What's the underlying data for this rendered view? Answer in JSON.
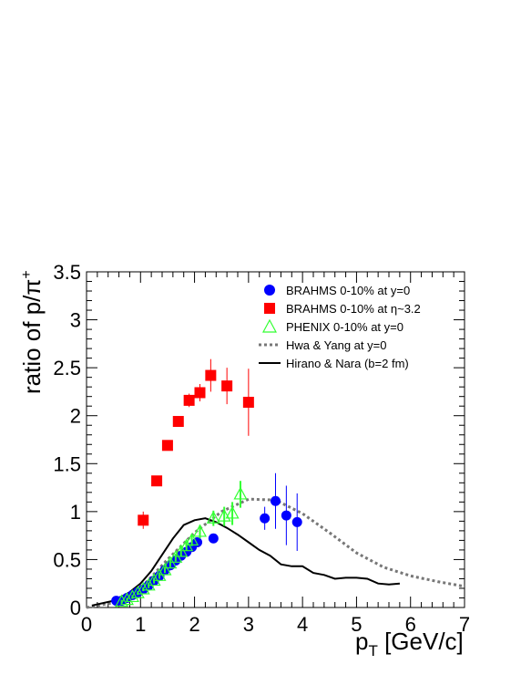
{
  "chart_data": {
    "type": "scatter",
    "xlabel": "p_T [GeV/c]",
    "ylabel": "ratio of p/π⁺",
    "xlim": [
      0,
      7
    ],
    "ylim": [
      0,
      3.5
    ],
    "x_ticks": [
      "0",
      "1",
      "2",
      "3",
      "4",
      "5",
      "6",
      "7"
    ],
    "y_ticks": [
      "0",
      "0.5",
      "1",
      "1.5",
      "2",
      "2.5",
      "3",
      "3.5"
    ],
    "grid": false,
    "legend_placement": "top-right",
    "series": [
      {
        "name": "BRAHMS 0-10% at y=0",
        "marker": "circle",
        "color": "#0000ff",
        "points": [
          {
            "x": 0.55,
            "y": 0.07,
            "err": 0.01
          },
          {
            "x": 0.65,
            "y": 0.07,
            "err": 0.01
          },
          {
            "x": 0.75,
            "y": 0.1,
            "err": 0.01
          },
          {
            "x": 0.85,
            "y": 0.13,
            "err": 0.01
          },
          {
            "x": 0.95,
            "y": 0.16,
            "err": 0.01
          },
          {
            "x": 1.05,
            "y": 0.19,
            "err": 0.01
          },
          {
            "x": 1.15,
            "y": 0.23,
            "err": 0.01
          },
          {
            "x": 1.25,
            "y": 0.28,
            "err": 0.01
          },
          {
            "x": 1.35,
            "y": 0.33,
            "err": 0.01
          },
          {
            "x": 1.45,
            "y": 0.39,
            "err": 0.02
          },
          {
            "x": 1.55,
            "y": 0.44,
            "err": 0.02
          },
          {
            "x": 1.65,
            "y": 0.49,
            "err": 0.02
          },
          {
            "x": 1.75,
            "y": 0.54,
            "err": 0.02
          },
          {
            "x": 1.85,
            "y": 0.58,
            "err": 0.03
          },
          {
            "x": 1.95,
            "y": 0.63,
            "err": 0.03
          },
          {
            "x": 2.05,
            "y": 0.68,
            "err": 0.03
          },
          {
            "x": 2.35,
            "y": 0.72,
            "err": 0.04
          },
          {
            "x": 3.3,
            "y": 0.93,
            "err": 0.12
          },
          {
            "x": 3.5,
            "y": 1.11,
            "err": 0.29
          },
          {
            "x": 3.7,
            "y": 0.96,
            "err": 0.31
          },
          {
            "x": 3.9,
            "y": 0.89,
            "err": 0.3
          }
        ]
      },
      {
        "name": "BRAHMS 0-10% at η~3.2",
        "marker": "square",
        "color": "#ff0000",
        "points": [
          {
            "x": 1.05,
            "y": 0.91,
            "err": 0.09
          },
          {
            "x": 1.3,
            "y": 1.32,
            "err": 0.05
          },
          {
            "x": 1.5,
            "y": 1.69,
            "err": 0.05
          },
          {
            "x": 1.7,
            "y": 1.94,
            "err": 0.05
          },
          {
            "x": 1.9,
            "y": 2.16,
            "err": 0.07
          },
          {
            "x": 2.1,
            "y": 2.24,
            "err": 0.09
          },
          {
            "x": 2.3,
            "y": 2.42,
            "err": 0.17
          },
          {
            "x": 2.6,
            "y": 2.31,
            "err": 0.19
          },
          {
            "x": 3.0,
            "y": 2.14,
            "err": 0.35
          }
        ]
      },
      {
        "name": "PHENIX  0-10% at y=0",
        "marker": "triangle-open",
        "color": "#33ff33",
        "points": [
          {
            "x": 0.65,
            "y": 0.06,
            "err": 0.02
          },
          {
            "x": 0.75,
            "y": 0.08,
            "err": 0.02
          },
          {
            "x": 0.85,
            "y": 0.11,
            "err": 0.02
          },
          {
            "x": 0.95,
            "y": 0.15,
            "err": 0.02
          },
          {
            "x": 1.05,
            "y": 0.19,
            "err": 0.02
          },
          {
            "x": 1.15,
            "y": 0.23,
            "err": 0.03
          },
          {
            "x": 1.25,
            "y": 0.28,
            "err": 0.03
          },
          {
            "x": 1.35,
            "y": 0.33,
            "err": 0.03
          },
          {
            "x": 1.45,
            "y": 0.39,
            "err": 0.03
          },
          {
            "x": 1.55,
            "y": 0.46,
            "err": 0.04
          },
          {
            "x": 1.65,
            "y": 0.52,
            "err": 0.04
          },
          {
            "x": 1.75,
            "y": 0.58,
            "err": 0.05
          },
          {
            "x": 1.85,
            "y": 0.64,
            "err": 0.05
          },
          {
            "x": 1.95,
            "y": 0.7,
            "err": 0.06
          },
          {
            "x": 2.1,
            "y": 0.79,
            "err": 0.07
          },
          {
            "x": 2.35,
            "y": 0.93,
            "err": 0.08
          },
          {
            "x": 2.55,
            "y": 0.95,
            "err": 0.1
          },
          {
            "x": 2.7,
            "y": 0.98,
            "err": 0.12
          },
          {
            "x": 2.85,
            "y": 1.18,
            "err": 0.14
          }
        ]
      },
      {
        "name": "Hwa & Yang at y=0",
        "line": "dotted",
        "color": "#777777",
        "x": [
          0.0,
          0.5,
          1.0,
          1.5,
          2.0,
          2.5,
          3.0,
          3.5,
          4.0,
          4.5,
          5.0,
          5.5,
          6.0,
          6.5,
          7.0
        ],
        "y": [
          0.0,
          0.05,
          0.2,
          0.5,
          0.78,
          1.0,
          1.13,
          1.12,
          0.98,
          0.78,
          0.57,
          0.42,
          0.33,
          0.27,
          0.22
        ]
      },
      {
        "name": "Hirano & Nara (b=2 fm)",
        "line": "solid",
        "color": "#000000",
        "x": [
          0.1,
          0.5,
          0.8,
          1.0,
          1.2,
          1.4,
          1.6,
          1.8,
          2.0,
          2.2,
          2.4,
          2.6,
          2.8,
          3.0,
          3.2,
          3.4,
          3.6,
          3.8,
          4.0,
          4.2,
          4.4,
          4.6,
          4.8,
          5.0,
          5.2,
          5.4,
          5.6,
          5.8
        ],
        "y": [
          0.02,
          0.07,
          0.16,
          0.25,
          0.38,
          0.55,
          0.72,
          0.86,
          0.91,
          0.93,
          0.89,
          0.83,
          0.76,
          0.68,
          0.6,
          0.54,
          0.45,
          0.43,
          0.43,
          0.36,
          0.34,
          0.3,
          0.31,
          0.31,
          0.3,
          0.25,
          0.24,
          0.25
        ]
      }
    ]
  }
}
